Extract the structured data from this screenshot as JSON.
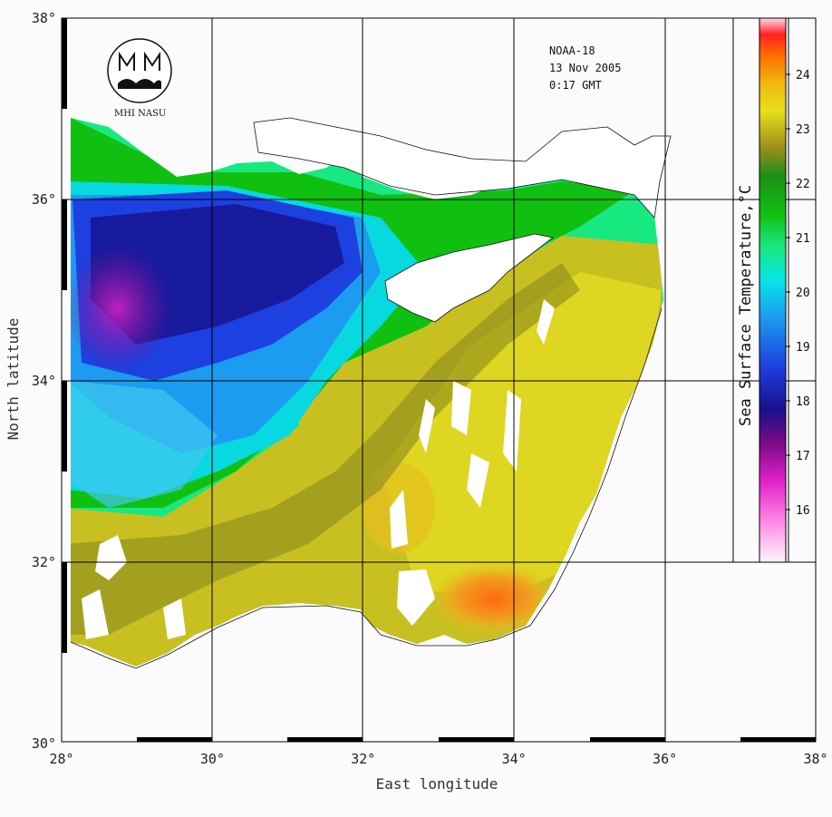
{
  "satellite": {
    "name": "NOAA-18",
    "date": "13 Nov 2005",
    "time": "0:17 GMT"
  },
  "logo": {
    "text": "MHI NASU"
  },
  "axes": {
    "xlabel": "East longitude",
    "ylabel": "North latitude",
    "x_ticks": [
      "28°",
      "30°",
      "32°",
      "34°",
      "36°",
      "38°"
    ],
    "y_ticks": [
      "38°",
      "36°",
      "34°",
      "32°",
      "30°"
    ]
  },
  "colorbar": {
    "title": "Sea Surface Temperature,°C",
    "ticks": [
      "24",
      "23",
      "22",
      "21",
      "20",
      "19",
      "18",
      "17",
      "16"
    ]
  },
  "colors": {
    "land": "#ffffff",
    "grid": "#000000",
    "background": "#fbfbfb"
  }
}
